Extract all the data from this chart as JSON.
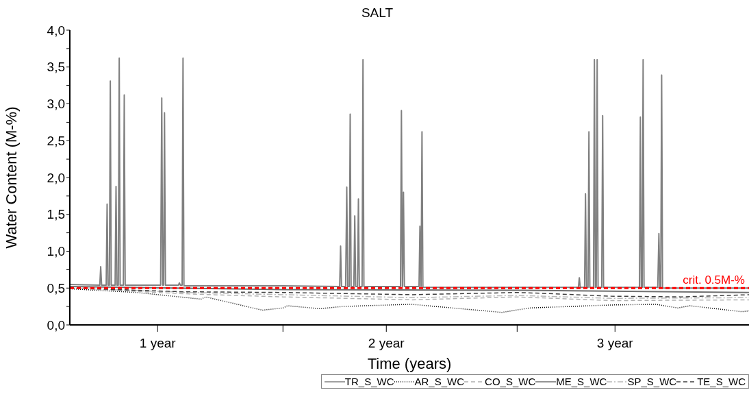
{
  "chart_data": {
    "type": "line",
    "title": "SALT",
    "xlabel": "Time (years)",
    "ylabel": "Water Content (M-%)",
    "xlim": [
      0.616,
      3.586
    ],
    "xticks": [
      {
        "value": 1,
        "label": "1 year"
      },
      {
        "value": 1.548,
        "label": null
      },
      {
        "value": 2,
        "label": "2 year"
      },
      {
        "value": 2.572,
        "label": null
      },
      {
        "value": 3,
        "label": "3 year"
      }
    ],
    "ylim": [
      0,
      4
    ],
    "yticks": [
      {
        "value": 0,
        "label": "0,0"
      },
      {
        "value": 0.25,
        "label": null
      },
      {
        "value": 0.5,
        "label": "0,5"
      },
      {
        "value": 0.75,
        "label": null
      },
      {
        "value": 1,
        "label": "1,0"
      },
      {
        "value": 1.25,
        "label": null
      },
      {
        "value": 1.5,
        "label": "1,5"
      },
      {
        "value": 1.75,
        "label": null
      },
      {
        "value": 2,
        "label": "2,0"
      },
      {
        "value": 2.25,
        "label": null
      },
      {
        "value": 2.5,
        "label": "2,5"
      },
      {
        "value": 2.75,
        "label": null
      },
      {
        "value": 3,
        "label": "3,0"
      },
      {
        "value": 3.25,
        "label": null
      },
      {
        "value": 3.5,
        "label": "3,5"
      },
      {
        "value": 3.75,
        "label": null
      },
      {
        "value": 4,
        "label": "4,0"
      }
    ],
    "legend": "bottom",
    "series": [
      {
        "name": "TR_S_WC",
        "color": "#808080",
        "line_style": "solid",
        "x": [
          0.616,
          0.747,
          0.751,
          0.755,
          0.775,
          0.779,
          0.783,
          0.789,
          0.793,
          0.797,
          0.814,
          0.818,
          0.822,
          0.828,
          0.832,
          0.836,
          0.85,
          0.854,
          0.858,
          1.013,
          1.018,
          1.022,
          1.026,
          1.03,
          1.034,
          1.091,
          1.095,
          1.099,
          1.107,
          1.111,
          1.115,
          1.548,
          1.796,
          1.8,
          1.804,
          1.822,
          1.827,
          1.831,
          1.838,
          1.842,
          1.846,
          1.858,
          1.862,
          1.866,
          1.874,
          1.878,
          1.882,
          1.894,
          1.898,
          1.902,
          2.062,
          2.066,
          2.07,
          2.071,
          2.075,
          2.079,
          2.143,
          2.147,
          2.151,
          2.152,
          2.156,
          2.16,
          2.572,
          2.84,
          2.844,
          2.848,
          2.867,
          2.871,
          2.875,
          2.882,
          2.886,
          2.89,
          2.906,
          2.91,
          2.914,
          2.918,
          2.922,
          2.926,
          2.942,
          2.946,
          2.95,
          3.107,
          3.111,
          3.115,
          3.119,
          3.123,
          3.127,
          3.187,
          3.192,
          3.196,
          3.2,
          3.204,
          3.208,
          3.586
        ],
        "values": [
          0.55,
          0.54,
          0.79,
          0.54,
          0.54,
          1.64,
          0.54,
          0.54,
          3.31,
          0.54,
          0.54,
          1.88,
          0.54,
          0.54,
          3.62,
          0.54,
          0.54,
          3.12,
          0.54,
          0.54,
          3.08,
          0.54,
          0.54,
          2.88,
          0.54,
          0.54,
          0.57,
          0.54,
          0.54,
          3.62,
          0.53,
          0.53,
          0.52,
          1.07,
          0.52,
          0.52,
          1.87,
          0.52,
          0.52,
          2.86,
          0.52,
          0.52,
          1.48,
          0.52,
          0.52,
          1.71,
          0.52,
          0.52,
          3.6,
          0.52,
          0.52,
          2.91,
          0.52,
          0.52,
          1.8,
          0.52,
          0.52,
          1.34,
          0.52,
          0.52,
          2.62,
          0.51,
          0.51,
          0.51,
          0.64,
          0.51,
          0.51,
          1.78,
          0.51,
          0.51,
          2.62,
          0.51,
          0.51,
          3.6,
          0.51,
          0.51,
          3.6,
          0.51,
          0.51,
          2.84,
          0.51,
          0.51,
          2.82,
          0.51,
          0.51,
          3.6,
          0.51,
          0.51,
          1.24,
          0.51,
          0.51,
          3.39,
          0.5,
          0.5
        ]
      },
      {
        "name": "AR_S_WC",
        "color": "#000000",
        "line_style": "dotted",
        "x": [
          0.616,
          0.91,
          1.189,
          1.21,
          1.458,
          1.548,
          1.568,
          1.71,
          1.808,
          2.108,
          2.506,
          2.626,
          2.976,
          3.177,
          3.275,
          3.327,
          3.554,
          3.586
        ],
        "values": [
          0.49,
          0.44,
          0.35,
          0.38,
          0.2,
          0.23,
          0.26,
          0.22,
          0.25,
          0.28,
          0.17,
          0.23,
          0.27,
          0.28,
          0.23,
          0.26,
          0.18,
          0.19
        ]
      },
      {
        "name": "CO_S_WC",
        "color": "#b0b0b0",
        "line_style": "dashed",
        "x": [
          0.616,
          1.138,
          1.548,
          2.111,
          2.572,
          2.982,
          3.586
        ],
        "values": [
          0.5,
          0.42,
          0.38,
          0.34,
          0.38,
          0.33,
          0.34
        ]
      },
      {
        "name": "ME_S_WC",
        "color": "#707070",
        "line_style": "solid",
        "x": [
          0.616,
          1.548,
          2.572,
          3.586
        ],
        "values": [
          0.52,
          0.48,
          0.47,
          0.44
        ]
      },
      {
        "name": "SP_S_WC",
        "color": "#b8b8b8",
        "line_style": "dashdot",
        "x": [
          0.616,
          1.138,
          1.548,
          2.111,
          2.572,
          2.982,
          3.586
        ],
        "values": [
          0.5,
          0.44,
          0.41,
          0.37,
          0.4,
          0.36,
          0.37
        ]
      },
      {
        "name": "TE_S_WC",
        "color": "#404040",
        "line_style": "dashed",
        "x": [
          0.616,
          1.108,
          1.548,
          2.111,
          2.572,
          2.674,
          2.982,
          3.289,
          3.586
        ],
        "values": [
          0.5,
          0.45,
          0.44,
          0.41,
          0.44,
          0.43,
          0.39,
          0.38,
          0.41
        ]
      }
    ],
    "ref_lines": [
      {
        "axis": "y",
        "value": 0.5,
        "label": "crit. 0.5M-%",
        "color": "#ff0000",
        "line_style": "dashed"
      }
    ]
  }
}
